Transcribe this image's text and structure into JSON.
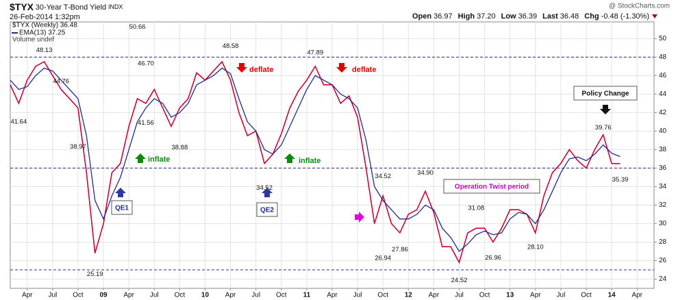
{
  "header": {
    "symbol": "$TYX",
    "name": "30-Year T-Bond Yield",
    "exchange": "INDX",
    "date": "26-Feb-2014 1:32pm",
    "credit": "@ StockCharts.com",
    "quote": [
      {
        "label": "Open",
        "value": "36.97"
      },
      {
        "label": "High",
        "value": "37.20"
      },
      {
        "label": "Low",
        "value": "36.39"
      },
      {
        "label": "Last",
        "value": "36.48"
      },
      {
        "label": "Chg",
        "value": "-0.48 (-1.30%)"
      }
    ]
  },
  "legend": {
    "volume": "Volume undef"
  },
  "notes": {
    "deflate1": "deflate",
    "deflate2": "deflate",
    "inflate1": "inflate",
    "inflate2": "inflate",
    "qe1": "QE1",
    "qe2": "QE2",
    "twist": "Operation Twist period",
    "policy": "Policy Change"
  },
  "chart_data": {
    "type": "line",
    "x": [
      "2008-02",
      "2008-03",
      "2008-04",
      "2008-05",
      "2008-06",
      "2008-07",
      "2008-08",
      "2008-09",
      "2008-10",
      "2008-11",
      "2008-12",
      "2009-01",
      "2009-02",
      "2009-03",
      "2009-04",
      "2009-05",
      "2009-06",
      "2009-07",
      "2009-08",
      "2009-09",
      "2009-10",
      "2009-11",
      "2009-12",
      "2010-01",
      "2010-02",
      "2010-03",
      "2010-04",
      "2010-05",
      "2010-06",
      "2010-07",
      "2010-08",
      "2010-09",
      "2010-10",
      "2010-11",
      "2010-12",
      "2011-01",
      "2011-02",
      "2011-03",
      "2011-04",
      "2011-05",
      "2011-06",
      "2011-07",
      "2011-08",
      "2011-09",
      "2011-10",
      "2011-11",
      "2011-12",
      "2012-01",
      "2012-02",
      "2012-03",
      "2012-04",
      "2012-05",
      "2012-06",
      "2012-07",
      "2012-08",
      "2012-09",
      "2012-10",
      "2012-11",
      "2012-12",
      "2013-01",
      "2013-02",
      "2013-03",
      "2013-04",
      "2013-05",
      "2013-06",
      "2013-07",
      "2013-08",
      "2013-09",
      "2013-10",
      "2013-11",
      "2013-12",
      "2014-01",
      "2014-02"
    ],
    "series": [
      {
        "name": "$TYX (Weekly) 36.48",
        "color": "#cc0033",
        "values": [
          45.0,
          43.0,
          45.5,
          47.0,
          47.5,
          46.0,
          44.5,
          43.5,
          42.5,
          35.5,
          26.8,
          30.0,
          35.5,
          36.5,
          40.5,
          43.5,
          43.0,
          44.5,
          42.5,
          40.5,
          42.5,
          43.5,
          46.3,
          45.5,
          46.5,
          47.5,
          45.5,
          42.0,
          39.5,
          40.0,
          36.5,
          37.5,
          39.7,
          42.5,
          44.3,
          45.5,
          47.0,
          45.0,
          45.0,
          43.0,
          43.8,
          41.5,
          36.0,
          30.0,
          33.0,
          30.0,
          29.0,
          31.0,
          31.5,
          33.5,
          31.2,
          27.5,
          27.5,
          25.8,
          29.0,
          29.5,
          29.5,
          28.0,
          29.5,
          31.5,
          31.5,
          31.0,
          29.0,
          33.0,
          35.5,
          36.5,
          38.0,
          36.8,
          36.0,
          38.0,
          39.6,
          36.5,
          36.48
        ]
      },
      {
        "name": "EMA(13) 37.25",
        "color": "#1f2d86",
        "values": [
          45.5,
          44.5,
          44.8,
          46.0,
          46.8,
          46.5,
          45.5,
          44.5,
          43.5,
          39.5,
          32.5,
          30.5,
          33.0,
          35.0,
          38.0,
          41.0,
          42.5,
          43.5,
          43.0,
          41.5,
          42.0,
          43.0,
          45.0,
          45.5,
          46.0,
          46.8,
          46.2,
          43.5,
          41.0,
          40.0,
          38.0,
          37.5,
          38.5,
          40.5,
          42.5,
          44.5,
          46.0,
          45.5,
          45.0,
          44.0,
          43.5,
          42.5,
          39.0,
          34.0,
          32.5,
          31.5,
          30.5,
          30.5,
          31.0,
          32.0,
          31.5,
          29.5,
          28.5,
          27.0,
          27.8,
          28.8,
          29.2,
          28.8,
          29.0,
          30.5,
          31.2,
          31.0,
          30.0,
          31.5,
          33.5,
          35.5,
          37.0,
          37.2,
          36.8,
          37.5,
          38.5,
          37.6,
          37.25
        ]
      }
    ],
    "xlim": [
      "2008-02",
      "2014-06"
    ],
    "xticks": [
      {
        "value": "2008-04",
        "label": "Apr"
      },
      {
        "value": "2008-07",
        "label": "Jul"
      },
      {
        "value": "2008-10",
        "label": "Oct"
      },
      {
        "value": "2009-01",
        "label": "09"
      },
      {
        "value": "2009-04",
        "label": "Apr"
      },
      {
        "value": "2009-07",
        "label": "Jul"
      },
      {
        "value": "2009-10",
        "label": "Oct"
      },
      {
        "value": "2010-01",
        "label": "10"
      },
      {
        "value": "2010-04",
        "label": "Apr"
      },
      {
        "value": "2010-07",
        "label": "Jul"
      },
      {
        "value": "2010-10",
        "label": "Oct"
      },
      {
        "value": "2011-01",
        "label": "11"
      },
      {
        "value": "2011-04",
        "label": "Apr"
      },
      {
        "value": "2011-07",
        "label": "Jul"
      },
      {
        "value": "2011-10",
        "label": "Oct"
      },
      {
        "value": "2012-01",
        "label": "12"
      },
      {
        "value": "2012-04",
        "label": "Apr"
      },
      {
        "value": "2012-07",
        "label": "Jul"
      },
      {
        "value": "2012-10",
        "label": "Oct"
      },
      {
        "value": "2013-01",
        "label": "13"
      },
      {
        "value": "2013-04",
        "label": "Apr"
      },
      {
        "value": "2013-07",
        "label": "Jul"
      },
      {
        "value": "2013-10",
        "label": "Oct"
      },
      {
        "value": "2014-01",
        "label": "14"
      },
      {
        "value": "2014-04",
        "label": "Apr"
      }
    ],
    "ylim": [
      23,
      51.8
    ],
    "yticks": [
      24,
      26,
      28,
      30,
      32,
      34,
      36,
      38,
      40,
      42,
      44,
      46,
      48,
      50
    ],
    "grid": true,
    "hlines": [
      48,
      36,
      25
    ],
    "annotations": [
      {
        "x": "2008-03",
        "value": 41.64,
        "label": "41.64",
        "position": "below"
      },
      {
        "x": "2008-06",
        "value": 48.13,
        "label": "48.13",
        "position": "above"
      },
      {
        "x": "2008-08",
        "value": 44.76,
        "label": "44.76",
        "position": "above"
      },
      {
        "x": "2008-10",
        "value": 38.97,
        "label": "38.97",
        "position": "below"
      },
      {
        "x": "2008-12",
        "value": 25.19,
        "label": "25.19",
        "position": "below"
      },
      {
        "x": "2009-05",
        "value": 50.66,
        "label": "50.66",
        "position": "above"
      },
      {
        "x": "2009-06",
        "value": 46.7,
        "label": "46.70",
        "position": "above"
      },
      {
        "x": "2009-06",
        "value": 41.56,
        "label": "41.56",
        "position": "below"
      },
      {
        "x": "2009-10",
        "value": 38.88,
        "label": "38.88",
        "position": "below"
      },
      {
        "x": "2010-04",
        "value": 48.58,
        "label": "48.58",
        "position": "above"
      },
      {
        "x": "2010-08",
        "value": 34.52,
        "label": "34.52",
        "position": "below"
      },
      {
        "x": "2011-02",
        "value": 47.89,
        "label": "47.89",
        "position": "above"
      },
      {
        "x": "2011-10",
        "value": 34.52,
        "label": "34.52",
        "position": "above"
      },
      {
        "x": "2011-10",
        "value": 26.94,
        "label": "26.94",
        "position": "below"
      },
      {
        "x": "2011-12",
        "value": 27.86,
        "label": "27.86",
        "position": "below"
      },
      {
        "x": "2012-03",
        "value": 34.9,
        "label": "34.90",
        "position": "above"
      },
      {
        "x": "2012-07",
        "value": 24.52,
        "label": "24.52",
        "position": "below"
      },
      {
        "x": "2012-09",
        "value": 31.08,
        "label": "31.08",
        "position": "above"
      },
      {
        "x": "2012-11",
        "value": 26.96,
        "label": "26.96",
        "position": "below"
      },
      {
        "x": "2013-04",
        "value": 28.1,
        "label": "28.10",
        "position": "below"
      },
      {
        "x": "2013-12",
        "value": 39.76,
        "label": "39.76",
        "position": "above"
      },
      {
        "x": "2014-02",
        "value": 35.39,
        "label": "35.39",
        "position": "below"
      }
    ]
  }
}
